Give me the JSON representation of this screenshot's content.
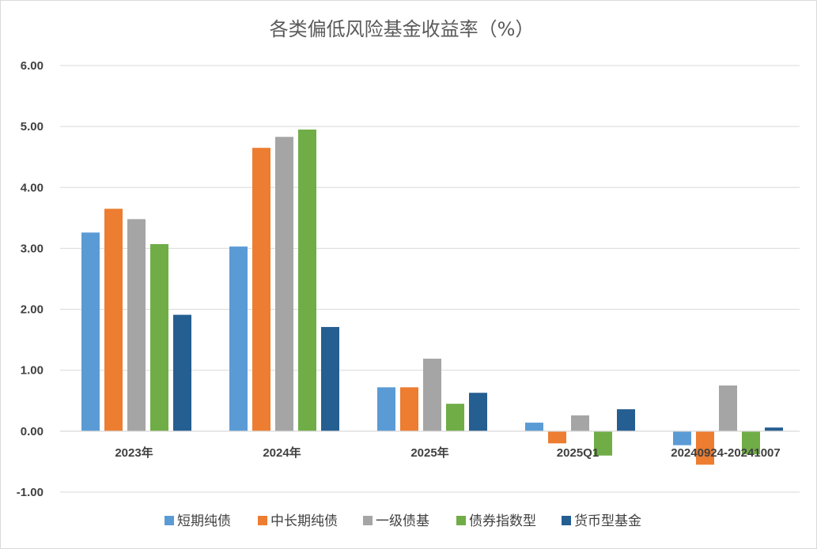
{
  "chart_data": {
    "type": "bar",
    "title": "各类偏低风险基金收益率（%）",
    "categories": [
      "2023年",
      "2024年",
      "2025年",
      "2025Q1",
      "20240924-20241007"
    ],
    "series": [
      {
        "name": "短期纯债",
        "color": "#5b9bd5",
        "values": [
          3.26,
          3.03,
          0.72,
          0.14,
          -0.23
        ]
      },
      {
        "name": "中长期纯债",
        "color": "#ed7d31",
        "values": [
          3.65,
          4.65,
          0.72,
          -0.2,
          -0.55
        ]
      },
      {
        "name": "一级债基",
        "color": "#a5a5a5",
        "values": [
          3.48,
          4.83,
          1.19,
          0.26,
          0.75
        ]
      },
      {
        "name": "债券指数型",
        "color": "#70ad47",
        "values": [
          3.07,
          4.95,
          0.45,
          -0.4,
          -0.38
        ]
      },
      {
        "name": "货币型基金",
        "color": "#255e91",
        "values": [
          1.91,
          1.71,
          0.63,
          0.36,
          0.06
        ]
      }
    ],
    "yticks": [
      "6.00",
      "5.00",
      "4.00",
      "3.00",
      "2.00",
      "1.00",
      "0.00",
      "-1.00"
    ],
    "ylim": [
      -1,
      6
    ],
    "grid": true,
    "legend": "bottom"
  }
}
